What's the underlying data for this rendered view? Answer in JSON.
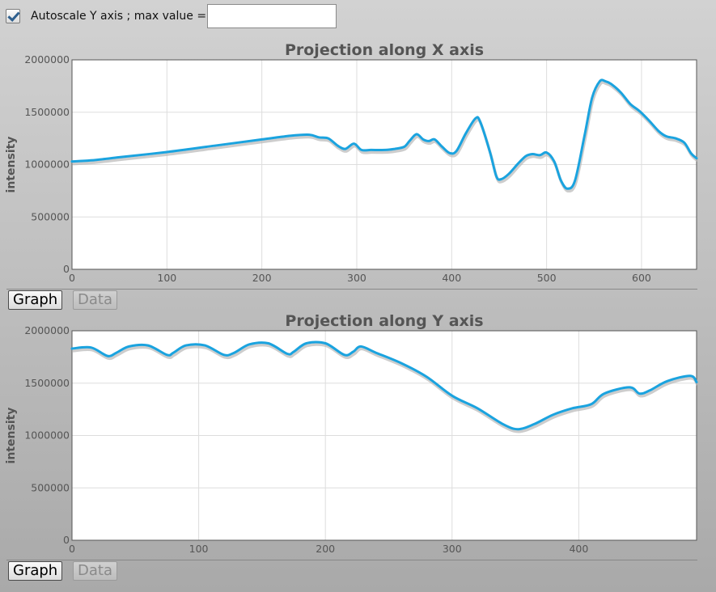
{
  "controls": {
    "autoscale_checked": true,
    "autoscale_label": "Autoscale Y axis ; max value =",
    "max_value": ""
  },
  "tabs": {
    "graph_label": "Graph",
    "data_label": "Data"
  },
  "colors": {
    "line": "#1aa3df",
    "shadow": "#b8b8b8",
    "grid": "#dddddd"
  },
  "chart_data": [
    {
      "type": "line",
      "title": "Projection along X axis",
      "xlabel": "",
      "ylabel": "intensity",
      "xlim": [
        0,
        658
      ],
      "ylim": [
        0,
        2000000
      ],
      "xticks": [
        0,
        100,
        200,
        300,
        400,
        500,
        600
      ],
      "yticks": [
        0,
        500000,
        1000000,
        1500000,
        2000000
      ],
      "grid": true,
      "series": [
        {
          "x": [
            0,
            20,
            50,
            100,
            150,
            200,
            230,
            250,
            260,
            270,
            280,
            288,
            297,
            305,
            315,
            330,
            340,
            350,
            356,
            363,
            370,
            376,
            382,
            390,
            398,
            405,
            415,
            425,
            430,
            440,
            447,
            452,
            460,
            470,
            478,
            485,
            493,
            500,
            508,
            515,
            522,
            530,
            540,
            548,
            556,
            562,
            568,
            578,
            588,
            598,
            608,
            618,
            626,
            636,
            645,
            652,
            658
          ],
          "y": [
            1030000,
            1040000,
            1070000,
            1120000,
            1180000,
            1240000,
            1275000,
            1285000,
            1260000,
            1250000,
            1180000,
            1150000,
            1200000,
            1140000,
            1140000,
            1140000,
            1150000,
            1170000,
            1230000,
            1290000,
            1240000,
            1225000,
            1240000,
            1170000,
            1110000,
            1130000,
            1300000,
            1440000,
            1410000,
            1130000,
            890000,
            860000,
            910000,
            1010000,
            1080000,
            1100000,
            1090000,
            1115000,
            1030000,
            850000,
            770000,
            850000,
            1280000,
            1640000,
            1795000,
            1795000,
            1770000,
            1690000,
            1580000,
            1510000,
            1420000,
            1320000,
            1270000,
            1250000,
            1210000,
            1110000,
            1060000
          ]
        }
      ]
    },
    {
      "type": "line",
      "title": "Projection along Y axis",
      "xlabel": "",
      "ylabel": "intensity",
      "xlim": [
        0,
        493
      ],
      "ylim": [
        0,
        2000000
      ],
      "xticks": [
        0,
        100,
        200,
        300,
        400
      ],
      "yticks": [
        0,
        500000,
        1000000,
        1500000,
        2000000
      ],
      "grid": true,
      "series": [
        {
          "x": [
            0,
            15,
            28,
            35,
            45,
            60,
            75,
            80,
            90,
            105,
            120,
            128,
            140,
            155,
            170,
            175,
            185,
            200,
            215,
            222,
            228,
            240,
            260,
            280,
            300,
            320,
            340,
            352,
            365,
            380,
            395,
            410,
            420,
            440,
            448,
            456,
            470,
            488,
            493
          ],
          "y": [
            1830000,
            1840000,
            1760000,
            1790000,
            1850000,
            1860000,
            1770000,
            1790000,
            1860000,
            1860000,
            1770000,
            1790000,
            1870000,
            1880000,
            1780000,
            1800000,
            1880000,
            1880000,
            1770000,
            1800000,
            1850000,
            1790000,
            1690000,
            1560000,
            1380000,
            1260000,
            1110000,
            1060000,
            1110000,
            1200000,
            1260000,
            1300000,
            1400000,
            1460000,
            1400000,
            1430000,
            1520000,
            1570000,
            1510000
          ]
        }
      ]
    }
  ]
}
